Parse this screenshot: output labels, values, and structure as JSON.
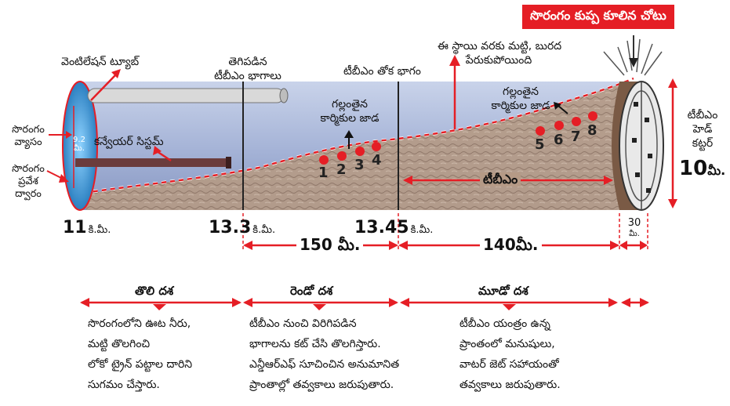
{
  "collapse_badge": "సొరంగం కుప్ప కూలిన చోటు",
  "labels": {
    "ventilation_tube": "వెంటిలేషన్ ట్యూబ్",
    "tunnel_diameter": [
      "సొరంగం",
      "వ్యాసం"
    ],
    "tunnel_entrance": [
      "సొరంగం",
      "ప్రవేశ",
      "ద్వారం"
    ],
    "diameter_value": "9.2",
    "diameter_unit": "మీ.",
    "conveyor_system": "కన్వేయర్ సిస్టమ్",
    "broken_tbm_parts": [
      "తెగిపడిన",
      "టీబీఎం భాగాలు"
    ],
    "tbm_tail": "టీబీఎం తోక భాగం",
    "debris_note": [
      "ఈ స్థాయి వరకు మట్టి, బురద",
      "పేరుకుపోయింది"
    ],
    "missing_workers_left": [
      "గల్లంతైన",
      "కార్మికుల జాడ"
    ],
    "missing_workers_right": [
      "గల్లంతైన",
      "కార్మికుల జాడ"
    ],
    "tbm": "టీబీఎం",
    "tbm_head_cutter": [
      "టీబీఎం",
      "హెడ్",
      "కట్టర్"
    ],
    "cutter_size_value": "10",
    "cutter_size_unit": "మీ."
  },
  "worker_markers": [
    "1",
    "2",
    "3",
    "4",
    "5",
    "6",
    "7",
    "8"
  ],
  "km_markers": [
    {
      "value": "11",
      "unit": "కి.మీ."
    },
    {
      "value": "13.3",
      "unit": "కి.మీ."
    },
    {
      "value": "13.45",
      "unit": "కి.మీ."
    }
  ],
  "end_segment": {
    "value": "30",
    "unit": "మీ."
  },
  "distances": [
    "150 మీ.",
    "140మీ."
  ],
  "phases": [
    {
      "title": "తొలి దశ",
      "text": [
        "సొరంగంలోని ఊట నీరు,",
        "మట్టి తొలగించి",
        "లోకో ట్రైన్ పట్టాల దారిని",
        "సుగమం చేస్తారు."
      ]
    },
    {
      "title": "రెండో దశ",
      "text": [
        "టీబీఎం నుంచి విరిగిపడిన",
        "భాగాలను కట్ చేసి తొలగిస్తారు.",
        "ఎన్డీఆర్ఎఫ్ సూచించిన అనుమానిత",
        "ప్రాంతాల్లో తవ్వకాలు జరుపుతారు."
      ]
    },
    {
      "title": "మూడో దశ",
      "text": [
        "టీబీఎం యంత్రం ఉన్న",
        "ప్రాంతంలో మనుషులు,",
        "వాటర్ జెట్ సహాయంతో",
        "తవ్వకాలు జరుపుతారు."
      ]
    }
  ],
  "colors": {
    "accent_red": "#e51e25",
    "tunnel_blue": "#9fb0d6",
    "sediment": "#b59a86"
  }
}
